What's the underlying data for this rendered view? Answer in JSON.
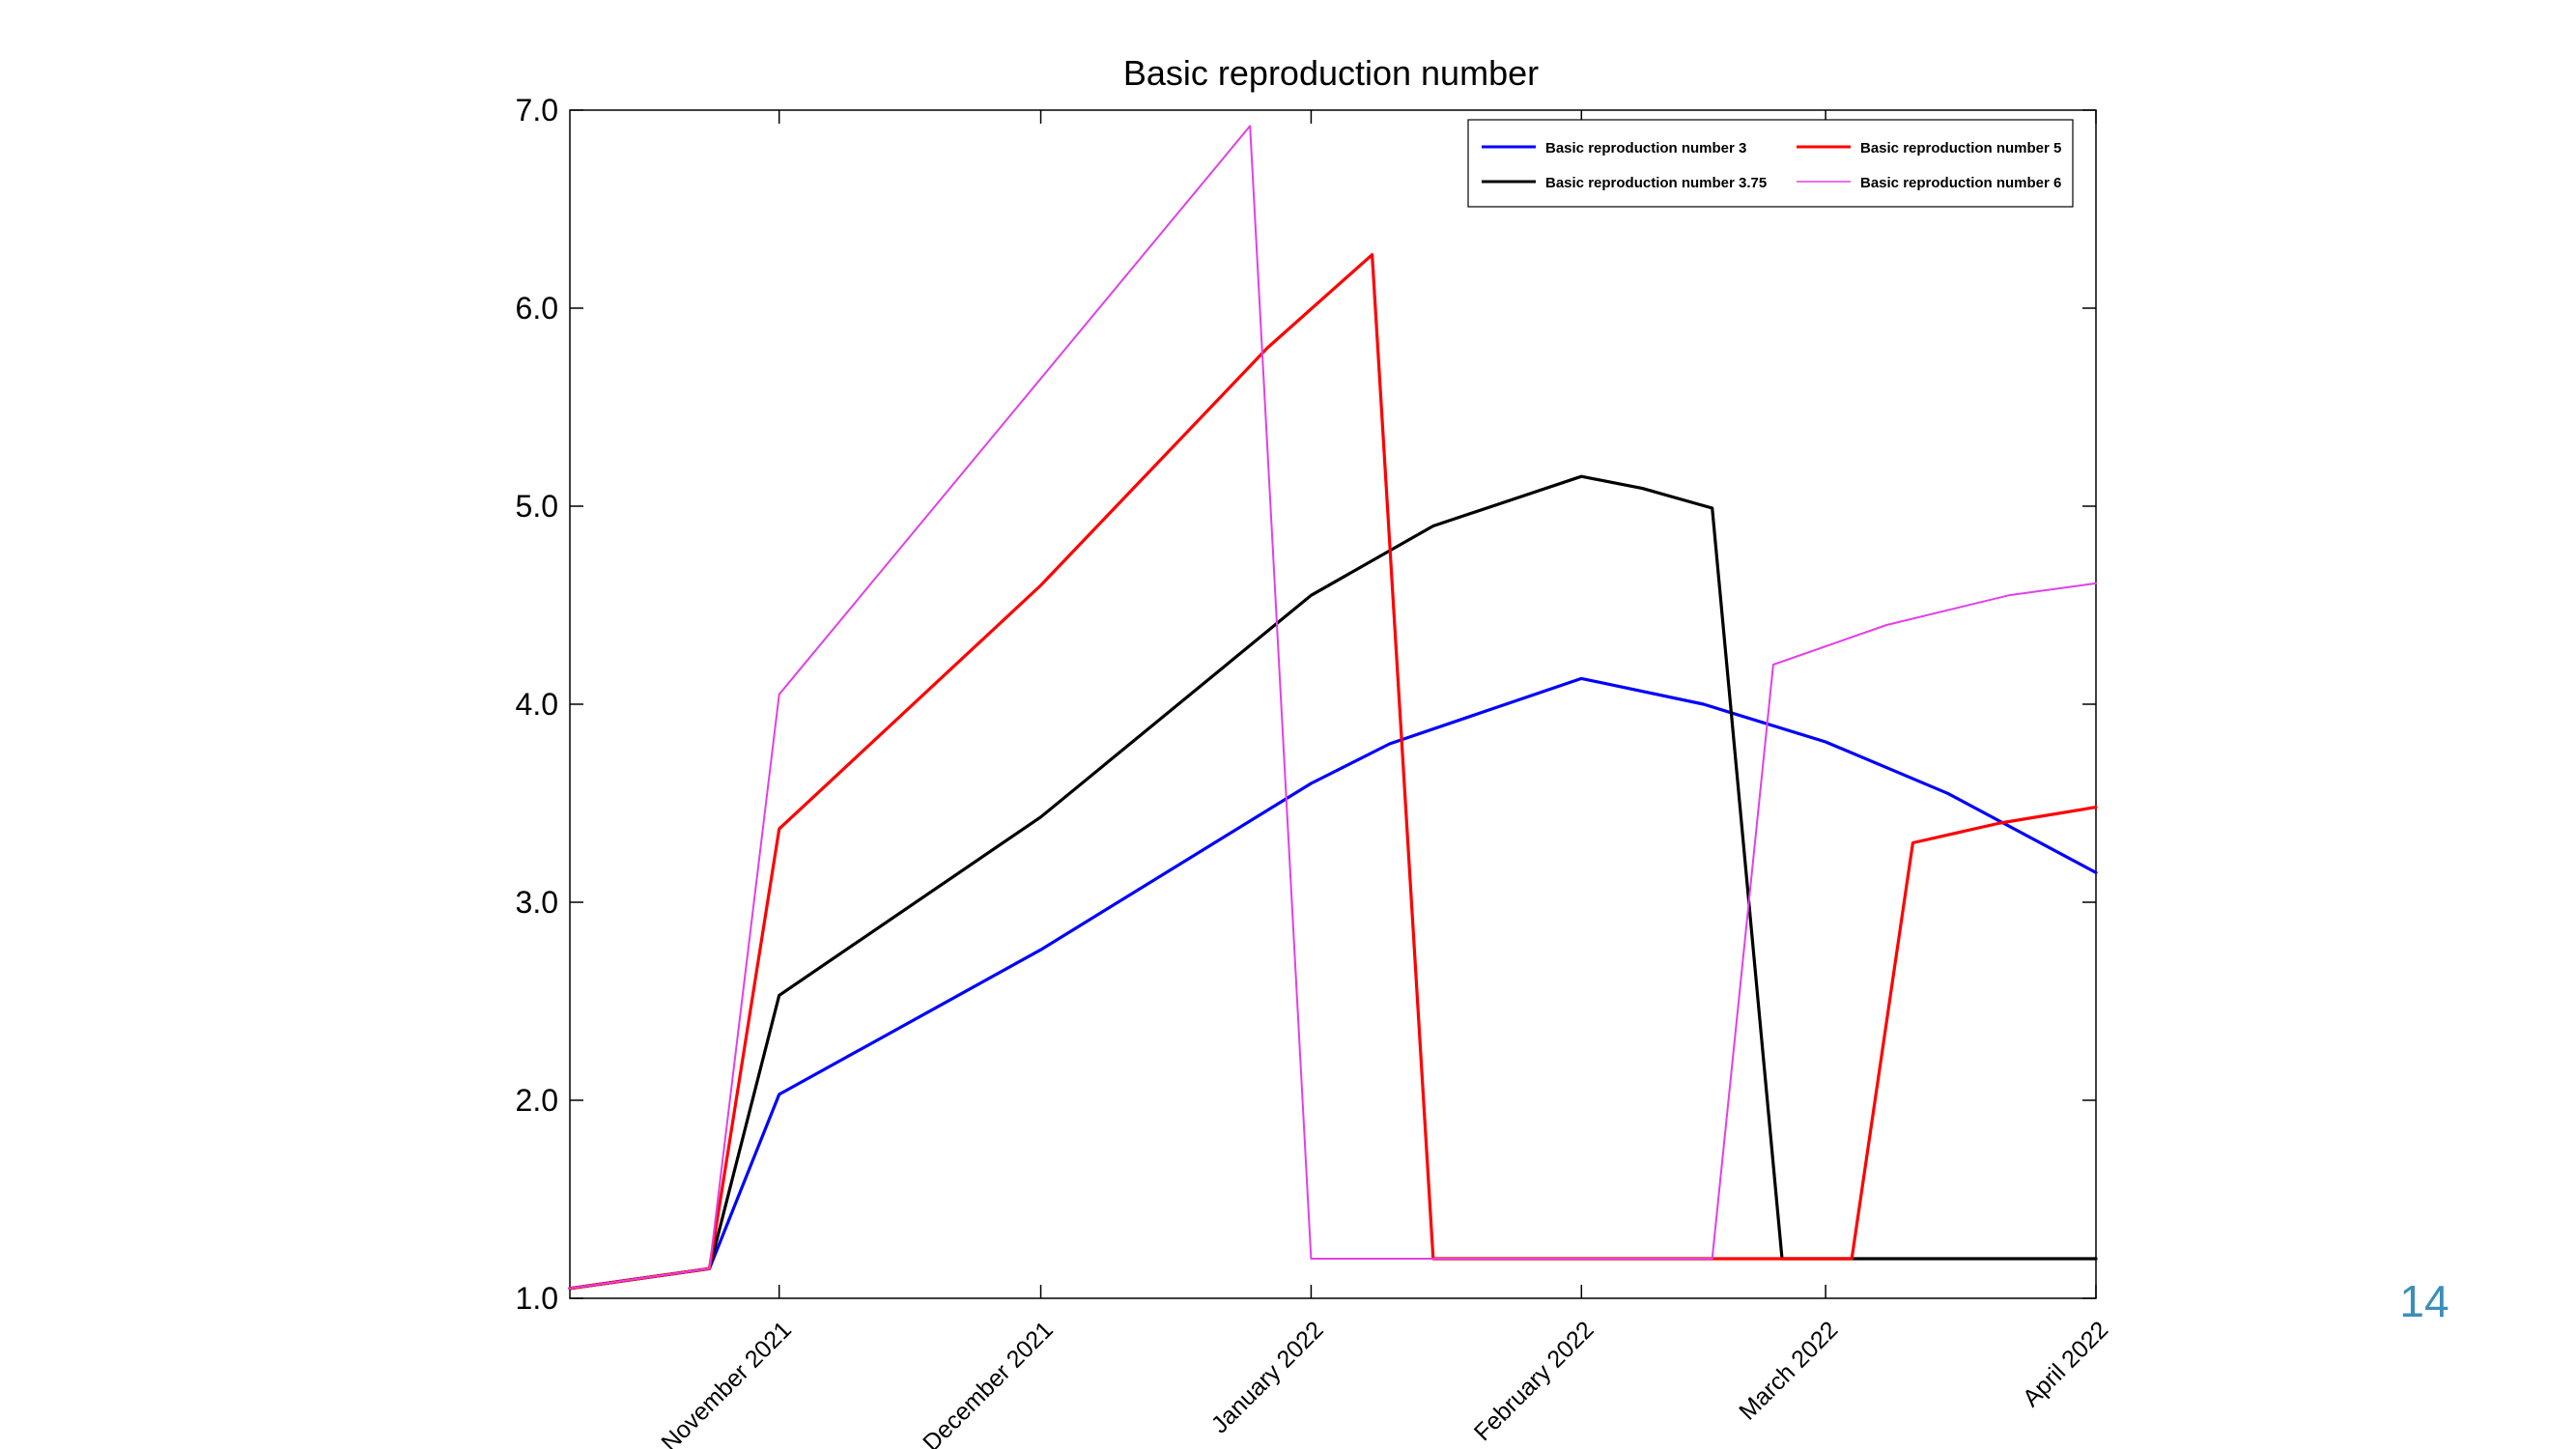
{
  "page": {
    "number": "14"
  },
  "chart_data": {
    "type": "line",
    "title": "Basic reproduction number",
    "xlabel": "",
    "ylabel": "",
    "x_domain": [
      "2021-10-08",
      "2022-04-01"
    ],
    "ylim": [
      1.0,
      7.0
    ],
    "y_ticks": [
      "1.0",
      "2.0",
      "3.0",
      "4.0",
      "5.0",
      "6.0",
      "7.0"
    ],
    "x_ticks": [
      {
        "date": "2021-11-01",
        "label": "November 2021"
      },
      {
        "date": "2021-12-01",
        "label": "December 2021"
      },
      {
        "date": "2022-01-01",
        "label": "January 2022"
      },
      {
        "date": "2022-02-01",
        "label": "February 2022"
      },
      {
        "date": "2022-03-01",
        "label": "March 2022"
      },
      {
        "date": "2022-04-01",
        "label": "April 2022"
      }
    ],
    "grid": false,
    "legend_position": "top-right",
    "series": [
      {
        "name": "Basic reproduction number 3",
        "color": "#0000ff",
        "points": [
          [
            "2021-10-08",
            1.05
          ],
          [
            "2021-10-24",
            1.15
          ],
          [
            "2021-11-01",
            2.03
          ],
          [
            "2021-12-01",
            2.76
          ],
          [
            "2022-01-01",
            3.6
          ],
          [
            "2022-01-10",
            3.8
          ],
          [
            "2022-02-01",
            4.13
          ],
          [
            "2022-02-15",
            4.0
          ],
          [
            "2022-03-01",
            3.81
          ],
          [
            "2022-03-15",
            3.55
          ],
          [
            "2022-04-01",
            3.15
          ]
        ]
      },
      {
        "name": "Basic reproduction number 3.75",
        "color": "#000000",
        "points": [
          [
            "2021-10-08",
            1.05
          ],
          [
            "2021-10-24",
            1.15
          ],
          [
            "2021-11-01",
            2.53
          ],
          [
            "2021-12-01",
            3.43
          ],
          [
            "2022-01-01",
            4.55
          ],
          [
            "2022-01-15",
            4.9
          ],
          [
            "2022-02-01",
            5.15
          ],
          [
            "2022-02-08",
            5.09
          ],
          [
            "2022-02-16",
            4.99
          ],
          [
            "2022-02-24",
            1.2
          ],
          [
            "2022-04-01",
            1.2
          ]
        ]
      },
      {
        "name": "Basic reproduction number 5",
        "color": "#ff0000",
        "points": [
          [
            "2021-10-08",
            1.05
          ],
          [
            "2021-10-24",
            1.15
          ],
          [
            "2021-11-01",
            3.37
          ],
          [
            "2021-12-01",
            4.6
          ],
          [
            "2021-12-27",
            5.8
          ],
          [
            "2022-01-08",
            6.27
          ],
          [
            "2022-01-15",
            1.2
          ],
          [
            "2022-03-04",
            1.2
          ],
          [
            "2022-03-11",
            3.3
          ],
          [
            "2022-03-21",
            3.4
          ],
          [
            "2022-04-01",
            3.48
          ]
        ]
      },
      {
        "name": "Basic reproduction number 6",
        "color": "#e040e8",
        "points": [
          [
            "2021-10-08",
            1.05
          ],
          [
            "2021-10-24",
            1.15
          ],
          [
            "2021-11-01",
            4.05
          ],
          [
            "2021-12-25",
            6.92
          ],
          [
            "2022-01-01",
            1.2
          ],
          [
            "2022-02-16",
            1.2
          ],
          [
            "2022-02-23",
            4.2
          ],
          [
            "2022-03-08",
            4.4
          ],
          [
            "2022-03-22",
            4.55
          ],
          [
            "2022-04-01",
            4.61
          ]
        ]
      }
    ],
    "legend_order": [
      "Basic reproduction number 3",
      "Basic reproduction number 5",
      "Basic reproduction number 3.75",
      "Basic reproduction number 6"
    ]
  }
}
